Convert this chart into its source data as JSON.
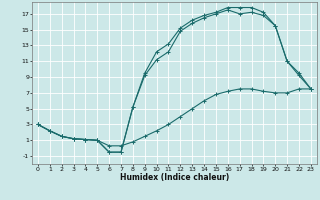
{
  "xlabel": "Humidex (Indice chaleur)",
  "bg_color": "#cce8e8",
  "grid_color": "#ffffff",
  "line_color": "#1a6b6b",
  "xlim": [
    -0.5,
    23.5
  ],
  "ylim": [
    -2.0,
    18.5
  ],
  "xticks": [
    0,
    1,
    2,
    3,
    4,
    5,
    6,
    7,
    8,
    9,
    10,
    11,
    12,
    13,
    14,
    15,
    16,
    17,
    18,
    19,
    20,
    21,
    22,
    23
  ],
  "yticks": [
    -1,
    1,
    3,
    5,
    7,
    9,
    11,
    13,
    15,
    17
  ],
  "line1_x": [
    0,
    1,
    2,
    3,
    4,
    5,
    6,
    7,
    8,
    9,
    10,
    11,
    12,
    13,
    14,
    15,
    16,
    17,
    18,
    19,
    20,
    21,
    22,
    23
  ],
  "line1_y": [
    3,
    2.2,
    1.5,
    1.2,
    1.1,
    1.0,
    0.3,
    0.3,
    0.8,
    1.5,
    2.2,
    3.0,
    4.0,
    5.0,
    6.0,
    6.8,
    7.2,
    7.5,
    7.5,
    7.2,
    7.0,
    7.0,
    7.5,
    7.5
  ],
  "line2_x": [
    0,
    1,
    2,
    3,
    4,
    5,
    6,
    7,
    8,
    9,
    10,
    11,
    12,
    13,
    14,
    15,
    16,
    17,
    18,
    19,
    20,
    21,
    22,
    23
  ],
  "line2_y": [
    3,
    2.2,
    1.5,
    1.2,
    1.1,
    1.0,
    -0.5,
    -0.5,
    5.2,
    9.2,
    11.2,
    12.2,
    14.8,
    15.8,
    16.5,
    17.0,
    17.5,
    17.0,
    17.2,
    16.8,
    15.5,
    11.0,
    9.2,
    7.5
  ],
  "line3_x": [
    0,
    1,
    2,
    3,
    4,
    5,
    6,
    7,
    8,
    9,
    10,
    11,
    12,
    13,
    14,
    15,
    16,
    17,
    18,
    19,
    20,
    21,
    22,
    23
  ],
  "line3_y": [
    3,
    2.2,
    1.5,
    1.2,
    1.1,
    1.0,
    -0.5,
    -0.5,
    5.2,
    9.5,
    12.2,
    13.2,
    15.2,
    16.2,
    16.8,
    17.2,
    17.8,
    17.8,
    17.8,
    17.2,
    15.5,
    11.0,
    9.5,
    7.5
  ]
}
